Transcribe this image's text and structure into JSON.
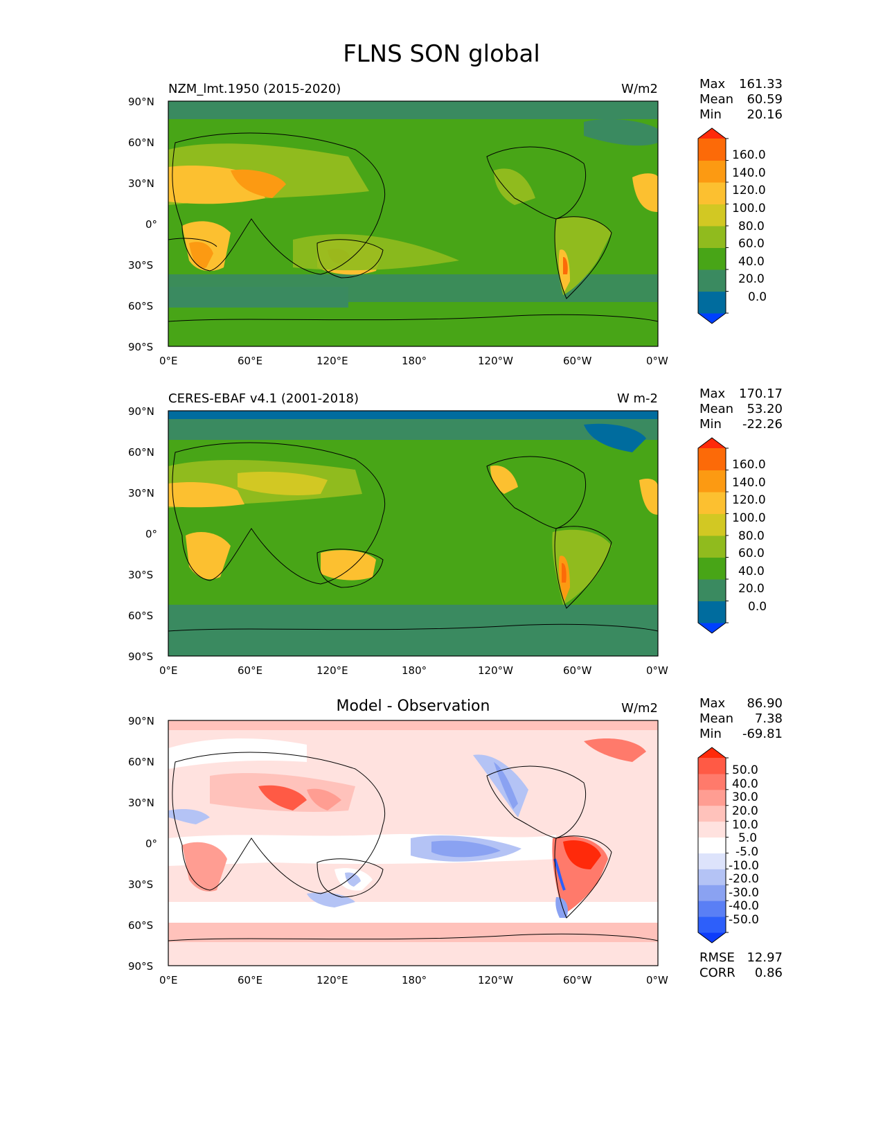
{
  "figure": {
    "title": "FLNS SON global",
    "lat_ticks": [
      "90°N",
      "60°N",
      "30°N",
      "0°",
      "30°S",
      "60°S",
      "90°S"
    ],
    "lon_ticks": [
      "0°E",
      "60°E",
      "120°E",
      "180°",
      "120°W",
      "60°W",
      "0°W"
    ]
  },
  "panels": [
    {
      "id": "model",
      "title": "NZM_lmt.1950 (2015-2020)",
      "title_position": "left",
      "units": "W/m2",
      "stats": [
        {
          "label": "Max",
          "value": "161.33"
        },
        {
          "label": "Mean",
          "value": "60.59"
        },
        {
          "label": "Min",
          "value": "20.16"
        }
      ],
      "colorbar": {
        "colors": [
          "#0040ff",
          "#006c9e",
          "#3a8a60",
          "#48a517",
          "#90bb1e",
          "#d2c823",
          "#fcc030",
          "#fc9a12",
          "#fc6a08",
          "#ff2a0a"
        ],
        "labels": [
          "160.0",
          "140.0",
          "120.0",
          "100.0",
          "80.0",
          "60.0",
          "40.0",
          "20.0",
          "0.0"
        ]
      }
    },
    {
      "id": "obs",
      "title": "CERES-EBAF v4.1 (2001-2018)",
      "title_position": "left",
      "units": "W m-2",
      "stats": [
        {
          "label": "Max",
          "value": "170.17"
        },
        {
          "label": "Mean",
          "value": "53.20"
        },
        {
          "label": "Min",
          "value": "-22.26"
        }
      ],
      "colorbar": {
        "colors": [
          "#0040ff",
          "#006c9e",
          "#3a8a60",
          "#48a517",
          "#90bb1e",
          "#d2c823",
          "#fcc030",
          "#fc9a12",
          "#fc6a08",
          "#ff2a0a"
        ],
        "labels": [
          "160.0",
          "140.0",
          "120.0",
          "100.0",
          "80.0",
          "60.0",
          "40.0",
          "20.0",
          "0.0"
        ]
      }
    },
    {
      "id": "diff",
      "title": "Model - Observation",
      "title_position": "center",
      "units": "W/m2",
      "stats": [
        {
          "label": "Max",
          "value": "86.90"
        },
        {
          "label": "Mean",
          "value": "7.38"
        },
        {
          "label": "Min",
          "value": "-69.81"
        }
      ],
      "extra_stats": [
        {
          "label": "RMSE",
          "value": "12.97"
        },
        {
          "label": "CORR",
          "value": "0.86"
        }
      ],
      "colorbar": {
        "colors": [
          "#0d3cfa",
          "#2d5ffa",
          "#5a7ff5",
          "#8aa2f2",
          "#b4c3f5",
          "#dde3fb",
          "#ffffff",
          "#ffe2df",
          "#ffc2bb",
          "#ff9d92",
          "#ff7a6b",
          "#ff5a45",
          "#ff2a0a"
        ],
        "labels": [
          "50.0",
          "40.0",
          "30.0",
          "20.0",
          "10.0",
          "5.0",
          "-5.0",
          "-10.0",
          "-20.0",
          "-30.0",
          "-40.0",
          "-50.0"
        ]
      }
    }
  ]
}
